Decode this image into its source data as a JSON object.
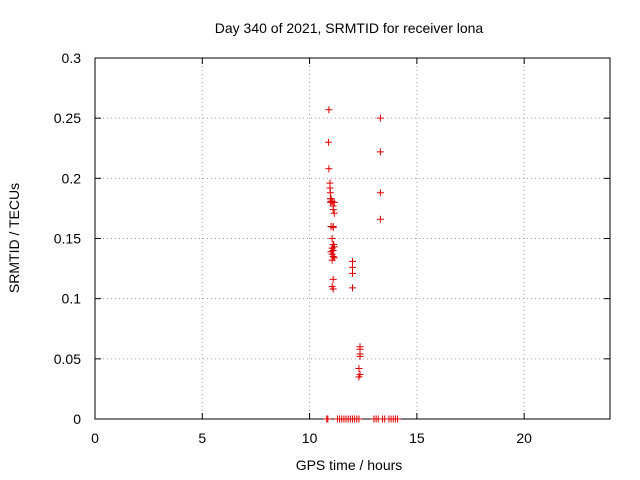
{
  "chart_data": {
    "type": "scatter",
    "title": "Day 340 of 2021, SRMTID for receiver lona",
    "xlabel": "GPS time / hours",
    "ylabel": "SRMTID / TECUs",
    "xlim": [
      0,
      24
    ],
    "ylim": [
      0,
      0.3
    ],
    "xticks": [
      0,
      5,
      10,
      15,
      20
    ],
    "yticks": [
      0,
      0.05,
      0.1,
      0.15,
      0.2,
      0.25,
      0.3
    ],
    "xtick_labels": [
      "0",
      "5",
      "10",
      "15",
      "20"
    ],
    "ytick_labels": [
      "0",
      "0.05",
      "0.1",
      "0.15",
      "0.2",
      "0.25",
      "0.3"
    ],
    "grid": true,
    "marker": "+",
    "color": "#e00000",
    "series": [
      {
        "name": "SRMTID",
        "x": [
          10.9,
          10.88,
          10.9,
          10.95,
          10.95,
          10.97,
          10.97,
          11.0,
          11.0,
          10.98,
          11.05,
          11.1,
          11.1,
          11.15,
          11.15,
          11.0,
          11.1,
          11.1,
          11.05,
          11.1,
          11.15,
          11.05,
          11.1,
          11.0,
          11.05,
          11.1,
          11.15,
          11.05,
          11.1,
          11.05,
          11.1,
          11.12,
          12.0,
          12.0,
          12.0,
          12.0,
          12.35,
          12.35,
          12.35,
          12.35,
          12.3,
          12.35,
          12.3,
          13.3,
          13.3,
          13.3,
          13.3,
          10.8,
          10.85,
          11.3,
          11.4,
          11.5,
          11.6,
          11.7,
          11.8,
          11.9,
          12.0,
          12.1,
          12.2,
          12.3,
          13.0,
          13.1,
          13.2,
          13.4,
          13.5,
          13.7,
          13.8,
          13.9,
          14.0,
          14.1
        ],
        "y": [
          0.257,
          0.23,
          0.208,
          0.196,
          0.192,
          0.188,
          0.183,
          0.183,
          0.181,
          0.18,
          0.181,
          0.177,
          0.174,
          0.18,
          0.171,
          0.16,
          0.159,
          0.16,
          0.15,
          0.145,
          0.143,
          0.142,
          0.14,
          0.139,
          0.137,
          0.135,
          0.134,
          0.132,
          0.116,
          0.11,
          0.108,
          0.145,
          0.131,
          0.126,
          0.121,
          0.109,
          0.06,
          0.058,
          0.054,
          0.052,
          0.042,
          0.037,
          0.035,
          0.25,
          0.222,
          0.188,
          0.166,
          0,
          0,
          0,
          0,
          0,
          0,
          0,
          0,
          0,
          0,
          0,
          0,
          0,
          0,
          0,
          0,
          0,
          0,
          0,
          0,
          0,
          0,
          0
        ]
      }
    ]
  }
}
